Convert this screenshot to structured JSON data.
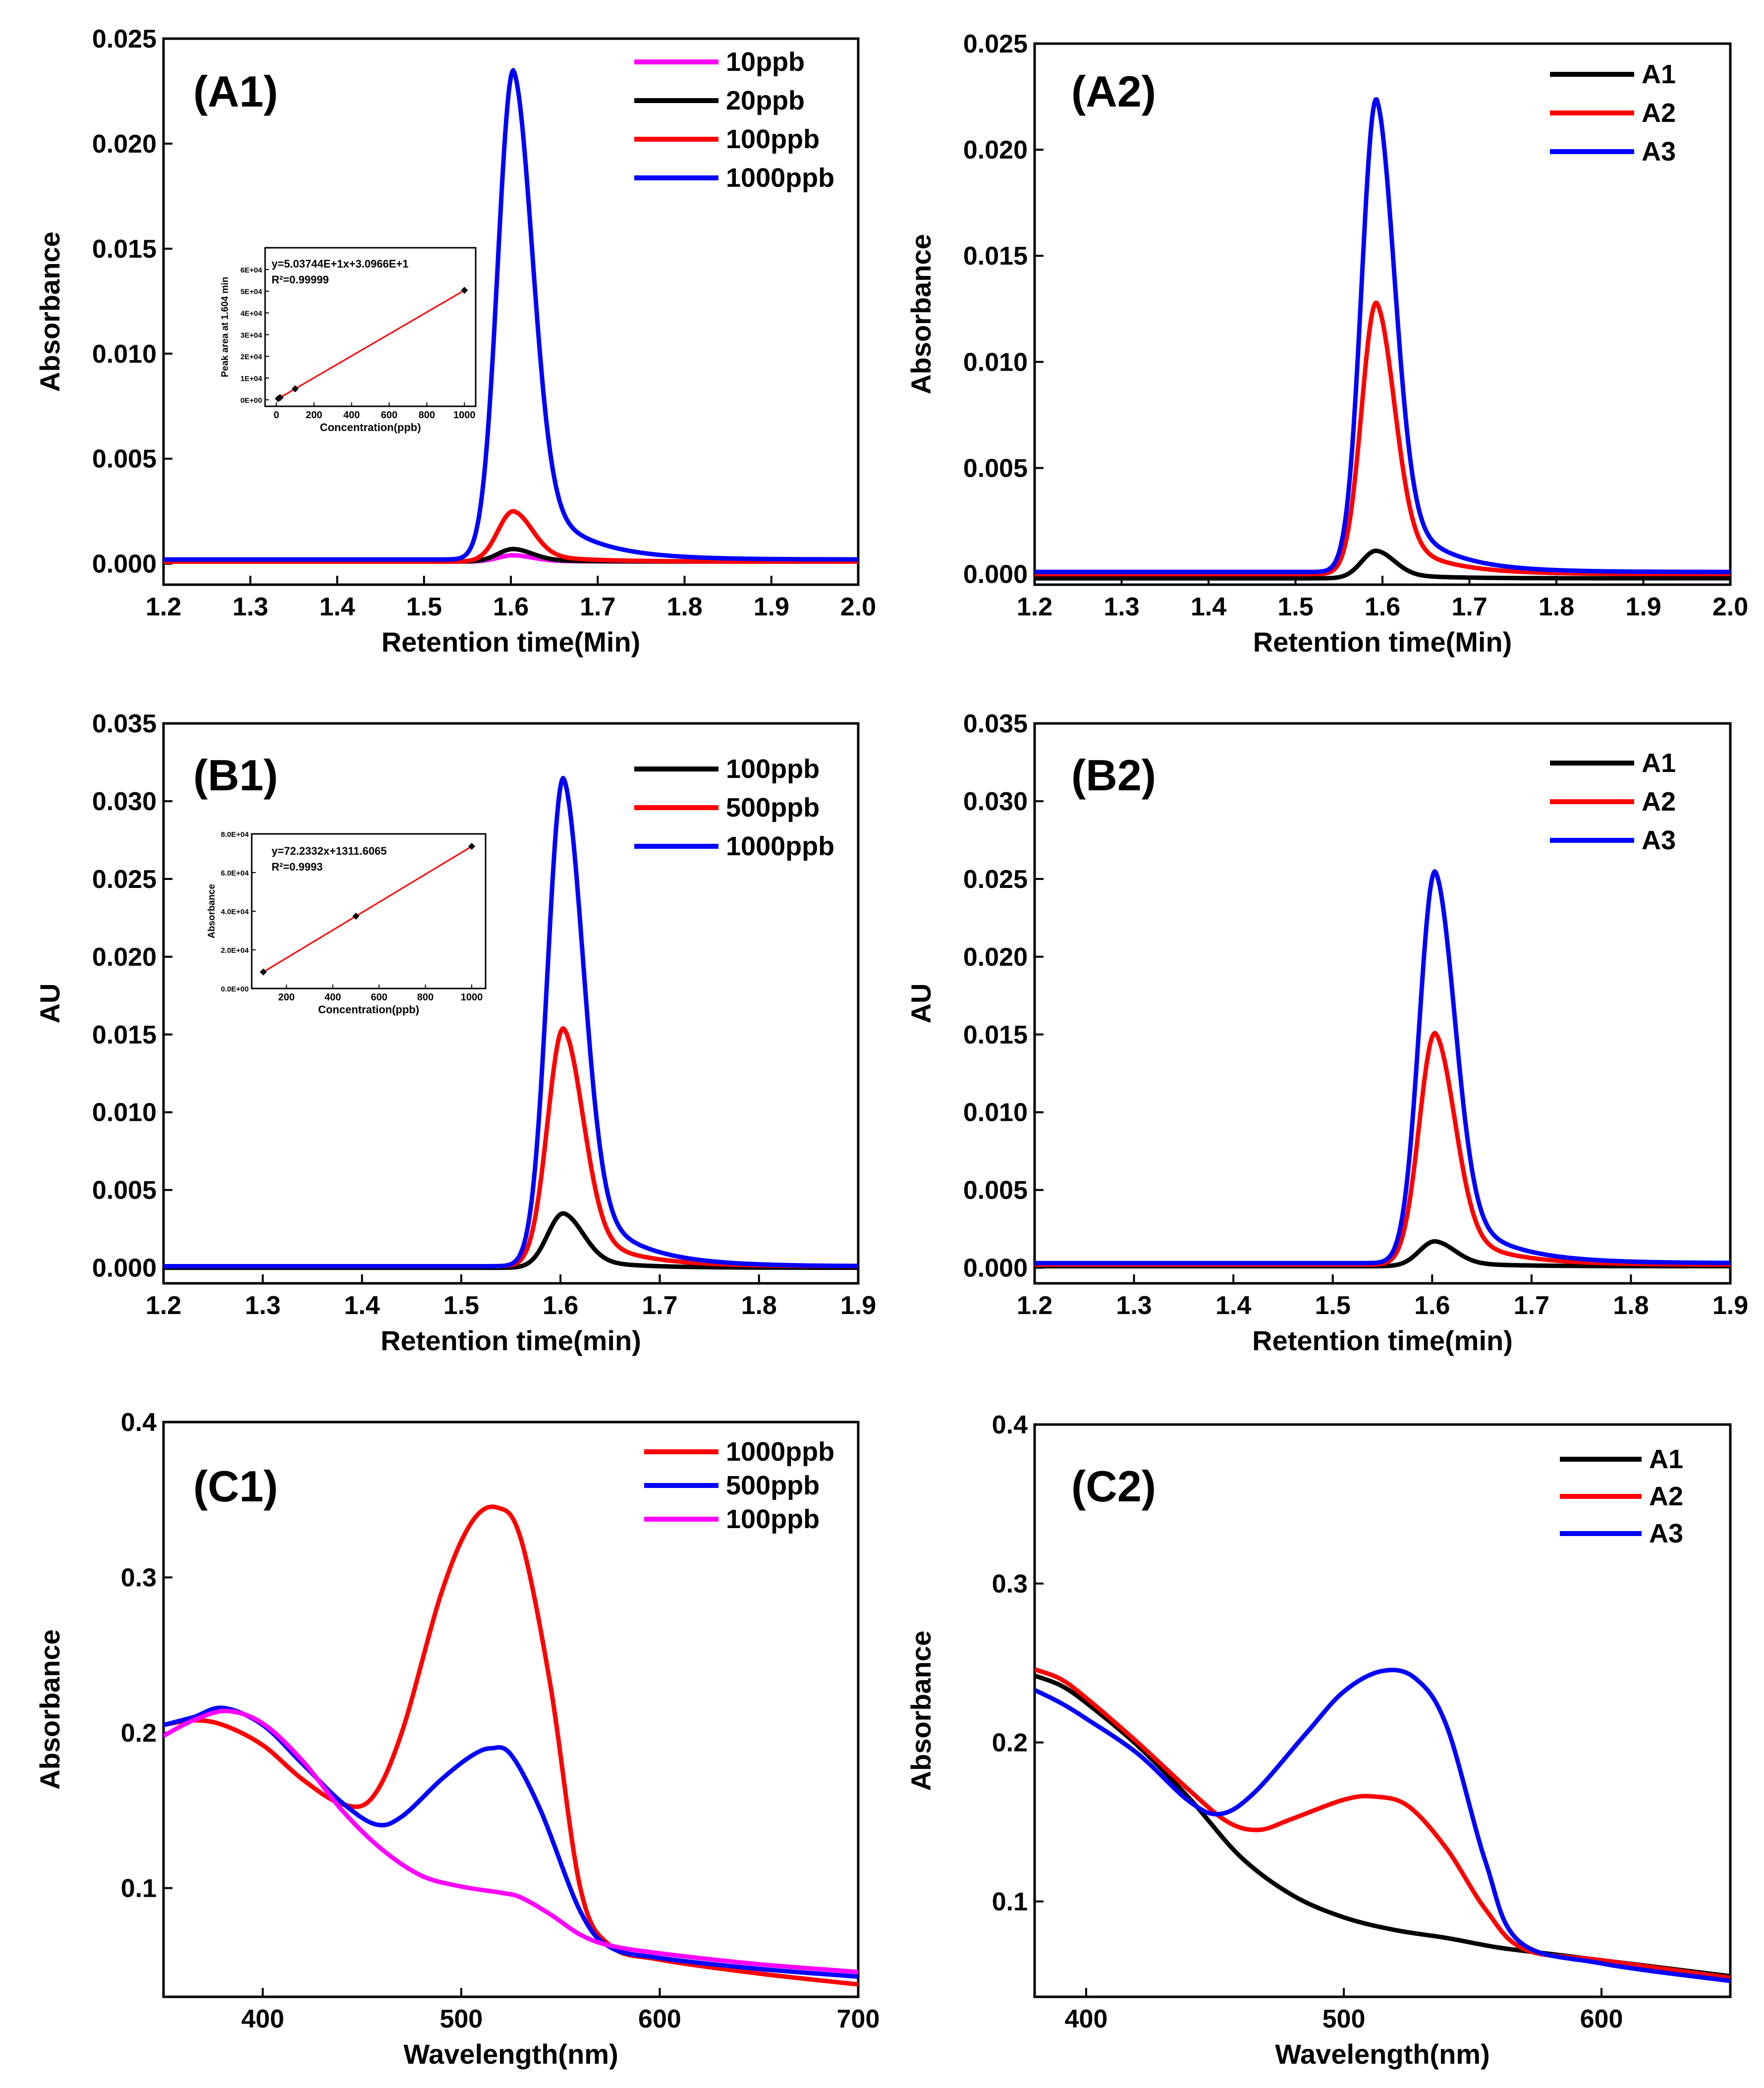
{
  "chart_data": [
    {
      "id": "A1",
      "type": "line",
      "panel_label": "(A1)",
      "xlabel": "Retention time(Min)",
      "ylabel": "Absorbance",
      "xlim": [
        1.2,
        2.0
      ],
      "ylim": [
        -0.001,
        0.025
      ],
      "xticks": [
        "1.2",
        "1.3",
        "1.4",
        "1.5",
        "1.6",
        "1.7",
        "1.8",
        "1.9",
        "2.0"
      ],
      "yticks": [
        "0.000",
        "0.005",
        "0.010",
        "0.015",
        "0.020",
        "0.025"
      ],
      "legend_position": "top-right",
      "series": [
        {
          "name": "10ppb",
          "color": "#ff00ff",
          "peak_x": 1.603,
          "peak_height": 0.0003,
          "baseline": 0.0001,
          "width_left": 0.018,
          "width_right": 0.022,
          "tail": 0.1
        },
        {
          "name": "20ppb",
          "color": "#000000",
          "peak_x": 1.603,
          "peak_height": 0.0006,
          "baseline": 0.0001,
          "width_left": 0.018,
          "width_right": 0.022,
          "tail": 0.1
        },
        {
          "name": "100ppb",
          "color": "#ff0000",
          "peak_x": 1.603,
          "peak_height": 0.0024,
          "baseline": 0.0001,
          "width_left": 0.018,
          "width_right": 0.022,
          "tail": 0.1
        },
        {
          "name": "1000ppb",
          "color": "#0000ff",
          "peak_x": 1.603,
          "peak_height": 0.0233,
          "baseline": 0.0002,
          "width_left": 0.018,
          "width_right": 0.022,
          "tail": 0.1
        }
      ],
      "inset": {
        "xlabel": "Concentration(ppb)",
        "ylabel": "Peak area at 1.604 min",
        "xticks": [
          "0",
          "200",
          "400",
          "600",
          "800",
          "1000"
        ],
        "yticks": [
          "0E+00",
          "1E+04",
          "2E+04",
          "3E+04",
          "4E+04",
          "5E+04",
          "6E+04"
        ],
        "xlim": [
          -60,
          1060
        ],
        "ylim": [
          -3000,
          70000
        ],
        "equation": "y=5.03744E+1x+3.0966E+1",
        "r2": "R²=0.99999",
        "points": [
          [
            10,
            535
          ],
          [
            20,
            1038
          ],
          [
            100,
            5068
          ],
          [
            1000,
            50405
          ]
        ],
        "fit": [
          [
            0,
            31
          ],
          [
            1000,
            50405
          ]
        ]
      }
    },
    {
      "id": "A2",
      "type": "line",
      "panel_label": "(A2)",
      "xlabel": "Retention time(Min)",
      "ylabel": "Absorbance",
      "xlim": [
        1.2,
        2.0
      ],
      "ylim": [
        -0.0005,
        0.025
      ],
      "xticks": [
        "1.2",
        "1.3",
        "1.4",
        "1.5",
        "1.6",
        "1.7",
        "1.8",
        "1.9",
        "2.0"
      ],
      "yticks": [
        "0.000",
        "0.005",
        "0.010",
        "0.015",
        "0.020",
        "0.025"
      ],
      "legend_position": "top-right",
      "series": [
        {
          "name": "A1",
          "color": "#000000",
          "peak_x": 1.593,
          "peak_height": 0.0013,
          "baseline": -0.0002,
          "width_left": 0.017,
          "width_right": 0.021,
          "tail": 0.1
        },
        {
          "name": "A2",
          "color": "#ff0000",
          "peak_x": 1.593,
          "peak_height": 0.0128,
          "baseline": 0.0,
          "width_left": 0.017,
          "width_right": 0.021,
          "tail": 0.1
        },
        {
          "name": "A3",
          "color": "#0000ff",
          "peak_x": 1.593,
          "peak_height": 0.0223,
          "baseline": 0.0001,
          "width_left": 0.017,
          "width_right": 0.021,
          "tail": 0.1
        }
      ]
    },
    {
      "id": "B1",
      "type": "line",
      "panel_label": "(B1)",
      "xlabel": "Retention time(min)",
      "ylabel": "AU",
      "xlim": [
        1.2,
        1.9
      ],
      "ylim": [
        -0.001,
        0.035
      ],
      "xticks": [
        "1.2",
        "1.3",
        "1.4",
        "1.5",
        "1.6",
        "1.7",
        "1.8",
        "1.9"
      ],
      "yticks": [
        "0.000",
        "0.005",
        "0.010",
        "0.015",
        "0.020",
        "0.025",
        "0.030",
        "0.035"
      ],
      "legend_position": "top-right",
      "series": [
        {
          "name": "100ppb",
          "color": "#000000",
          "peak_x": 1.603,
          "peak_height": 0.0035,
          "baseline": 0.0,
          "width_left": 0.016,
          "width_right": 0.02,
          "tail": 0.1
        },
        {
          "name": "500ppb",
          "color": "#ff0000",
          "peak_x": 1.603,
          "peak_height": 0.0153,
          "baseline": 0.0001,
          "width_left": 0.016,
          "width_right": 0.02,
          "tail": 0.1
        },
        {
          "name": "1000ppb",
          "color": "#0000ff",
          "peak_x": 1.603,
          "peak_height": 0.0314,
          "baseline": 0.0001,
          "width_left": 0.016,
          "width_right": 0.02,
          "tail": 0.1
        }
      ],
      "inset": {
        "xlabel": "Concentration(ppb)",
        "ylabel": "Absorbance",
        "xticks": [
          "200",
          "400",
          "600",
          "800",
          "1000"
        ],
        "yticks": [
          "0.0E+00",
          "2.0E+04",
          "4.0E+04",
          "6.0E+04",
          "8.0E+04"
        ],
        "xlim": [
          50,
          1060
        ],
        "ylim": [
          0,
          80000
        ],
        "equation": "y=72.2332x+1311.6065",
        "r2": "R²=0.9993",
        "points": [
          [
            100,
            8535
          ],
          [
            500,
            37428
          ],
          [
            1000,
            73545
          ]
        ],
        "fit": [
          [
            100,
            8535
          ],
          [
            1000,
            73545
          ]
        ]
      }
    },
    {
      "id": "B2",
      "type": "line",
      "panel_label": "(B2)",
      "xlabel": "Retention time(min)",
      "ylabel": "AU",
      "xlim": [
        1.2,
        1.9
      ],
      "ylim": [
        -0.001,
        0.035
      ],
      "xticks": [
        "1.2",
        "1.3",
        "1.4",
        "1.5",
        "1.6",
        "1.7",
        "1.8",
        "1.9"
      ],
      "yticks": [
        "0.000",
        "0.005",
        "0.010",
        "0.015",
        "0.020",
        "0.025",
        "0.030",
        "0.035"
      ],
      "legend_position": "top-right",
      "series": [
        {
          "name": "A1",
          "color": "#000000",
          "peak_x": 1.603,
          "peak_height": 0.0016,
          "baseline": 0.0001,
          "width_left": 0.016,
          "width_right": 0.02,
          "tail": 0.1
        },
        {
          "name": "A2",
          "color": "#ff0000",
          "peak_x": 1.603,
          "peak_height": 0.0149,
          "baseline": 0.0002,
          "width_left": 0.016,
          "width_right": 0.02,
          "tail": 0.1
        },
        {
          "name": "A3",
          "color": "#0000ff",
          "peak_x": 1.603,
          "peak_height": 0.0252,
          "baseline": 0.0003,
          "width_left": 0.016,
          "width_right": 0.02,
          "tail": 0.1
        }
      ]
    },
    {
      "id": "C1",
      "type": "line",
      "panel_label": "(C1)",
      "xlabel": "Wavelength(nm)",
      "ylabel": "Absorbance",
      "xlim": [
        350,
        700
      ],
      "ylim": [
        0.03,
        0.4
      ],
      "xticks": [
        "400",
        "500",
        "600",
        "700"
      ],
      "yticks": [
        "0.1",
        "0.2",
        "0.3",
        "0.4"
      ],
      "legend_position": "top-right",
      "series": [
        {
          "name": "1000ppb",
          "color": "#ff0000",
          "points": [
            [
              350,
              0.205
            ],
            [
              365,
              0.208
            ],
            [
              380,
              0.205
            ],
            [
              400,
              0.192
            ],
            [
              420,
              0.17
            ],
            [
              440,
              0.154
            ],
            [
              455,
              0.158
            ],
            [
              470,
              0.2
            ],
            [
              490,
              0.29
            ],
            [
              505,
              0.335
            ],
            [
              518,
              0.345
            ],
            [
              530,
              0.325
            ],
            [
              545,
              0.23
            ],
            [
              560,
              0.1
            ],
            [
              575,
              0.063
            ],
            [
              600,
              0.054
            ],
            [
              650,
              0.045
            ],
            [
              700,
              0.038
            ]
          ]
        },
        {
          "name": "500ppb",
          "color": "#0000ff",
          "points": [
            [
              350,
              0.205
            ],
            [
              365,
              0.21
            ],
            [
              380,
              0.216
            ],
            [
              400,
              0.205
            ],
            [
              420,
              0.18
            ],
            [
              440,
              0.155
            ],
            [
              457,
              0.141
            ],
            [
              470,
              0.146
            ],
            [
              490,
              0.17
            ],
            [
              505,
              0.185
            ],
            [
              515,
              0.19
            ],
            [
              525,
              0.186
            ],
            [
              540,
              0.15
            ],
            [
              560,
              0.085
            ],
            [
              575,
              0.062
            ],
            [
              600,
              0.055
            ],
            [
              650,
              0.048
            ],
            [
              700,
              0.043
            ]
          ]
        },
        {
          "name": "100ppb",
          "color": "#ff00ff",
          "points": [
            [
              350,
              0.198
            ],
            [
              365,
              0.208
            ],
            [
              382,
              0.214
            ],
            [
              400,
              0.206
            ],
            [
              420,
              0.182
            ],
            [
              440,
              0.15
            ],
            [
              460,
              0.125
            ],
            [
              480,
              0.108
            ],
            [
              500,
              0.101
            ],
            [
              520,
              0.097
            ],
            [
              530,
              0.094
            ],
            [
              545,
              0.083
            ],
            [
              560,
              0.07
            ],
            [
              575,
              0.063
            ],
            [
              600,
              0.058
            ],
            [
              650,
              0.051
            ],
            [
              700,
              0.046
            ]
          ]
        }
      ]
    },
    {
      "id": "C2",
      "type": "line",
      "panel_label": "(C2)",
      "xlabel": "Wavelength(nm)",
      "ylabel": "Absorbance",
      "xlim": [
        380,
        650
      ],
      "ylim": [
        0.04,
        0.4
      ],
      "xticks": [
        "400",
        "500",
        "600"
      ],
      "yticks": [
        "0.1",
        "0.2",
        "0.3",
        "0.4"
      ],
      "legend_position": "top-right",
      "series": [
        {
          "name": "A1",
          "color": "#000000",
          "points": [
            [
              380,
              0.242
            ],
            [
              390,
              0.236
            ],
            [
              400,
              0.225
            ],
            [
              420,
              0.198
            ],
            [
              440,
              0.165
            ],
            [
              460,
              0.128
            ],
            [
              480,
              0.104
            ],
            [
              500,
              0.09
            ],
            [
              520,
              0.082
            ],
            [
              540,
              0.077
            ],
            [
              560,
              0.071
            ],
            [
              580,
              0.067
            ],
            [
              600,
              0.063
            ],
            [
              620,
              0.059
            ],
            [
              650,
              0.053
            ]
          ]
        },
        {
          "name": "A2",
          "color": "#ff0000",
          "points": [
            [
              380,
              0.246
            ],
            [
              390,
              0.24
            ],
            [
              400,
              0.228
            ],
            [
              420,
              0.2
            ],
            [
              440,
              0.17
            ],
            [
              455,
              0.15
            ],
            [
              467,
              0.145
            ],
            [
              480,
              0.152
            ],
            [
              500,
              0.164
            ],
            [
              512,
              0.166
            ],
            [
              525,
              0.16
            ],
            [
              540,
              0.133
            ],
            [
              555,
              0.095
            ],
            [
              570,
              0.07
            ],
            [
              600,
              0.063
            ],
            [
              650,
              0.052
            ]
          ]
        },
        {
          "name": "A3",
          "color": "#0000ff",
          "points": [
            [
              380,
              0.233
            ],
            [
              390,
              0.225
            ],
            [
              400,
              0.215
            ],
            [
              420,
              0.193
            ],
            [
              440,
              0.163
            ],
            [
              452,
              0.155
            ],
            [
              465,
              0.168
            ],
            [
              485,
              0.205
            ],
            [
              500,
              0.232
            ],
            [
              515,
              0.245
            ],
            [
              528,
              0.24
            ],
            [
              540,
              0.21
            ],
            [
              555,
              0.125
            ],
            [
              568,
              0.075
            ],
            [
              600,
              0.061
            ],
            [
              650,
              0.05
            ]
          ]
        }
      ]
    }
  ]
}
